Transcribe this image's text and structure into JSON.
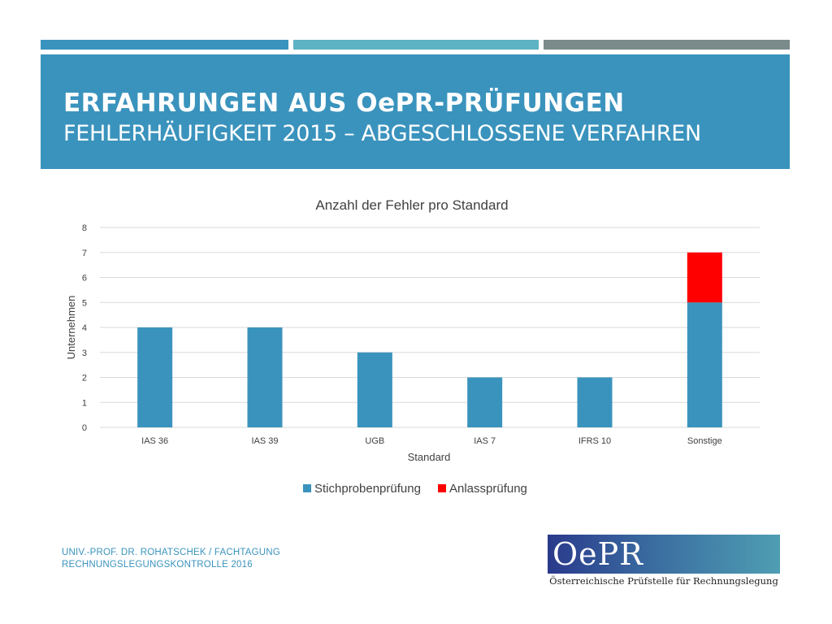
{
  "header": {
    "title": "ERFAHRUNGEN AUS OePR-PRÜFUNGEN",
    "subtitle": "FEHLERHÄUFIGKEIT 2015 – ABGESCHLOSSENE VERFAHREN"
  },
  "colors": {
    "accent": "#3a93bd",
    "series_stichprobe": "#3a93bd",
    "series_anlass": "#ff0000"
  },
  "chart_data": {
    "type": "bar",
    "stacked": true,
    "title": "Anzahl der Fehler pro Standard",
    "xlabel": "Standard",
    "ylabel": "Unternehmen",
    "categories": [
      "IAS 36",
      "IAS 39",
      "UGB",
      "IAS 7",
      "IFRS 10",
      "Sonstige"
    ],
    "series": [
      {
        "name": "Stichprobenprüfung",
        "values": [
          4,
          4,
          3,
          2,
          2,
          5
        ]
      },
      {
        "name": "Anlassprüfung",
        "values": [
          0,
          0,
          0,
          0,
          0,
          2
        ]
      }
    ],
    "ylim": [
      0,
      8
    ],
    "yticks": [
      0,
      1,
      2,
      3,
      4,
      5,
      6,
      7,
      8
    ],
    "grid": true,
    "legend": "bottom-center"
  },
  "footer": {
    "line1": "UNIV.-PROF. DR. ROHATSCHEK / FACHTAGUNG",
    "line2": "RECHNUNGSLEGUNGSKONTROLLE 2016"
  },
  "logo": {
    "mark": "OePR",
    "tagline": "Österreichische Prüfstelle für Rechnungslegung"
  }
}
